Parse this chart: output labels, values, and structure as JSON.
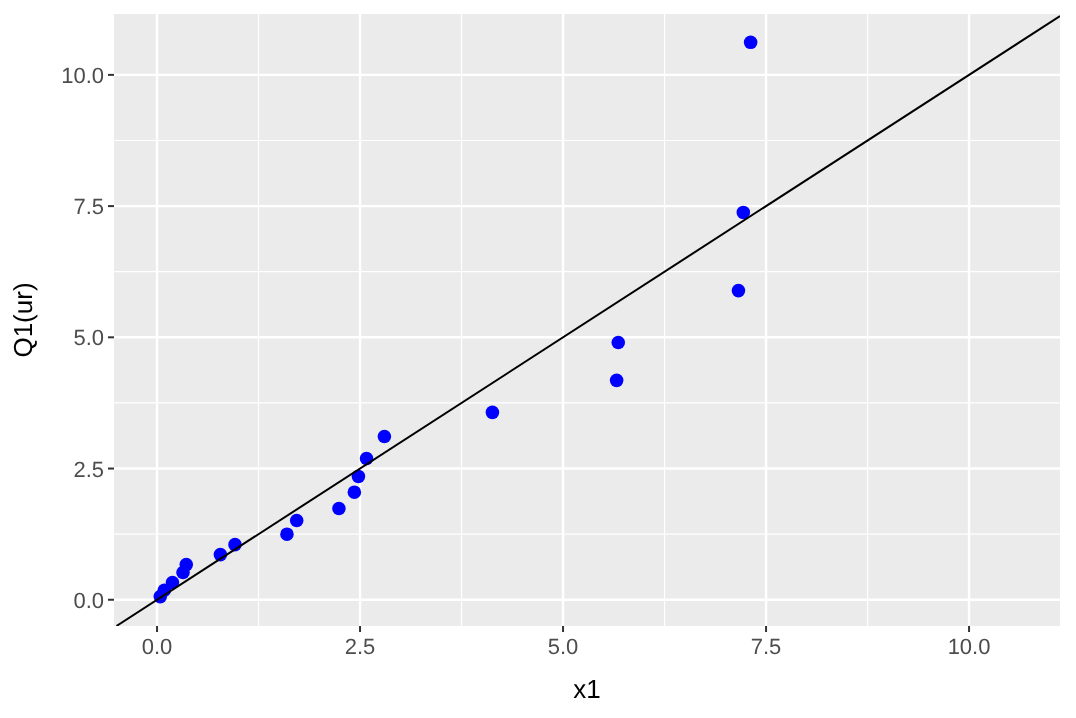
{
  "chart_data": {
    "type": "scatter",
    "xlabel": "x1",
    "ylabel": "Q1(ur)",
    "xlim": [
      -0.53,
      11.12
    ],
    "ylim": [
      -0.5,
      11.16
    ],
    "xticks": [
      {
        "value": 0,
        "label": "0.0"
      },
      {
        "value": 2.5,
        "label": "2.5"
      },
      {
        "value": 5,
        "label": "5.0"
      },
      {
        "value": 7.5,
        "label": "7.5"
      },
      {
        "value": 10,
        "label": "10.0"
      }
    ],
    "yticks": [
      {
        "value": 0,
        "label": "0.0"
      },
      {
        "value": 2.5,
        "label": "2.5"
      },
      {
        "value": 5,
        "label": "5.0"
      },
      {
        "value": 7.5,
        "label": "7.5"
      },
      {
        "value": 10,
        "label": "10.0"
      }
    ],
    "grid": true,
    "series": [
      {
        "marker": "circle",
        "color": "#0000ff",
        "x": [
          0.04,
          0.09,
          0.19,
          0.32,
          0.36,
          0.78,
          0.96,
          1.6,
          1.72,
          2.24,
          2.43,
          2.48,
          2.58,
          2.8,
          4.13,
          5.68,
          5.66,
          7.16,
          7.22,
          7.31
        ],
        "values": [
          0.06,
          0.18,
          0.33,
          0.52,
          0.67,
          0.86,
          1.05,
          1.25,
          1.51,
          1.74,
          2.05,
          2.35,
          2.69,
          3.11,
          3.57,
          4.9,
          4.18,
          5.89,
          7.38,
          10.62
        ]
      },
      {
        "type": "line",
        "color": "#000000",
        "x": [
          -0.5,
          11.12
        ],
        "values": [
          -0.5,
          11.12
        ]
      }
    ]
  }
}
